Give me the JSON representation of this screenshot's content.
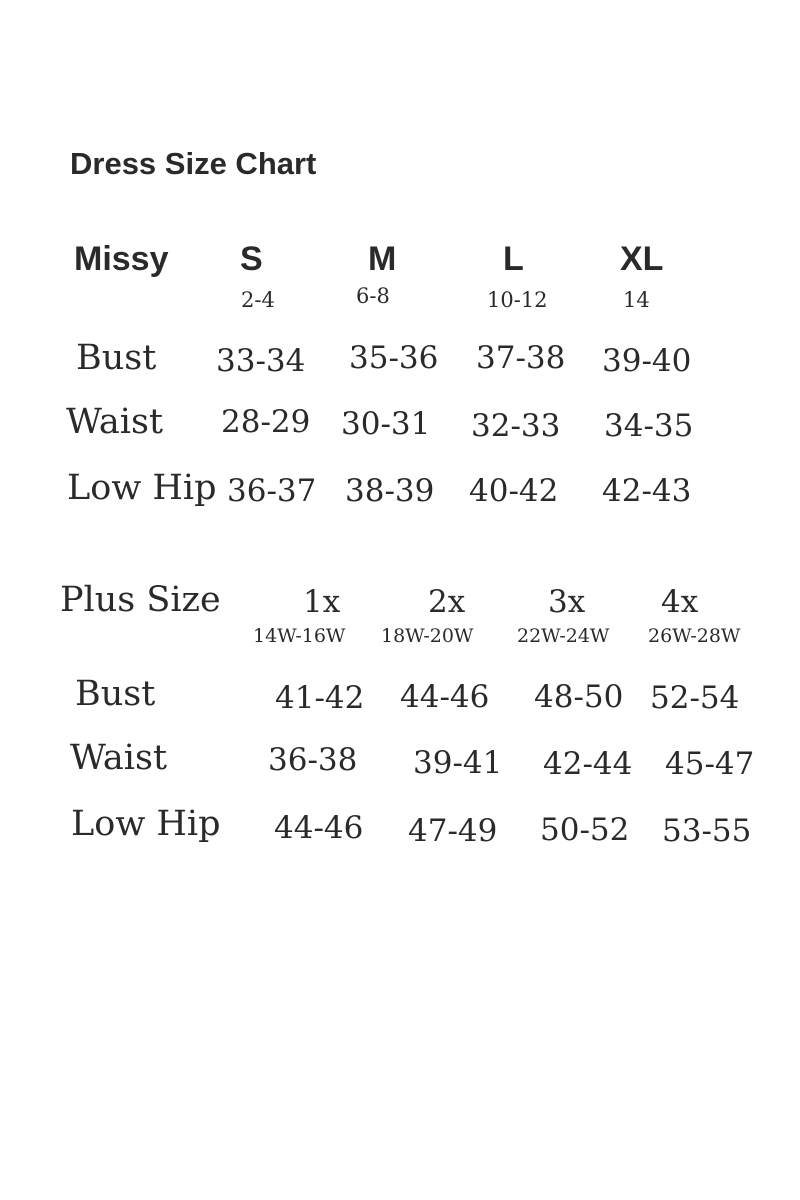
{
  "title": "Dress Size Chart",
  "missy": {
    "label": "Missy",
    "sizes": [
      {
        "name": "S",
        "range": "2-4"
      },
      {
        "name": "M",
        "range": "6-8"
      },
      {
        "name": "L",
        "range": "10-12"
      },
      {
        "name": "XL",
        "range": "14"
      }
    ],
    "rows": [
      {
        "label": "Bust",
        "values": [
          "33-34",
          "35-36",
          "37-38",
          "39-40"
        ]
      },
      {
        "label": "Waist",
        "values": [
          "28-29",
          "30-31",
          "32-33",
          "34-35"
        ]
      },
      {
        "label": "Low Hip",
        "values": [
          "36-37",
          "38-39",
          "40-42",
          "42-43"
        ]
      }
    ]
  },
  "plus": {
    "label": "Plus Size",
    "sizes": [
      {
        "name": "1x",
        "range": "14W-16W"
      },
      {
        "name": "2x",
        "range": "18W-20W"
      },
      {
        "name": "3x",
        "range": "22W-24W"
      },
      {
        "name": "4x",
        "range": "26W-28W"
      }
    ],
    "rows": [
      {
        "label": "Bust",
        "values": [
          "41-42",
          "44-46",
          "48-50",
          "52-54"
        ]
      },
      {
        "label": "Waist",
        "values": [
          "36-38",
          "39-41",
          "42-44",
          "45-47"
        ]
      },
      {
        "label": "Low Hip",
        "values": [
          "44-46",
          "47-49",
          "50-52",
          "53-55"
        ]
      }
    ]
  }
}
